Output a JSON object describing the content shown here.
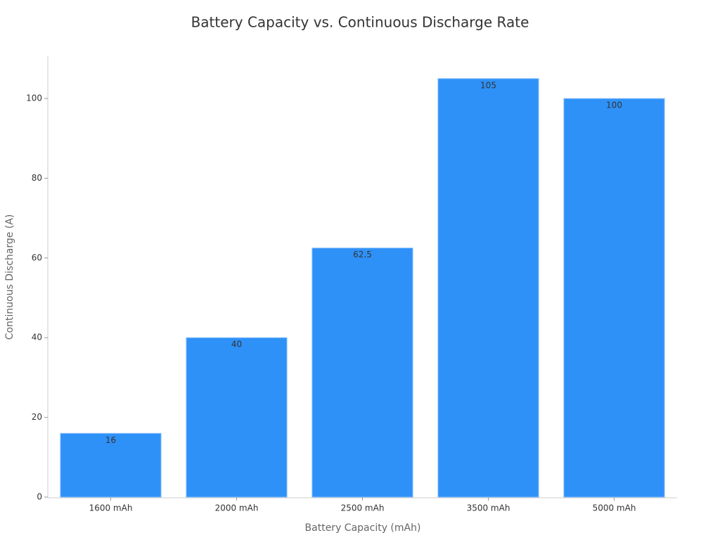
{
  "chart_data": {
    "type": "bar",
    "title": "Battery Capacity vs. Continuous Discharge Rate",
    "x_label": "Battery Capacity (mAh)",
    "y_label": "Continuous Discharge (A)",
    "categories": [
      "1600 mAh",
      "2000 mAh",
      "2500 mAh",
      "3500 mAh",
      "5000 mAh"
    ],
    "values": [
      16,
      40,
      62.5,
      105,
      100
    ],
    "color": "#2e91f8",
    "ylim": [
      0,
      110.25
    ],
    "yticks": [
      0,
      20,
      40,
      60,
      80,
      100
    ],
    "grid": false
  }
}
